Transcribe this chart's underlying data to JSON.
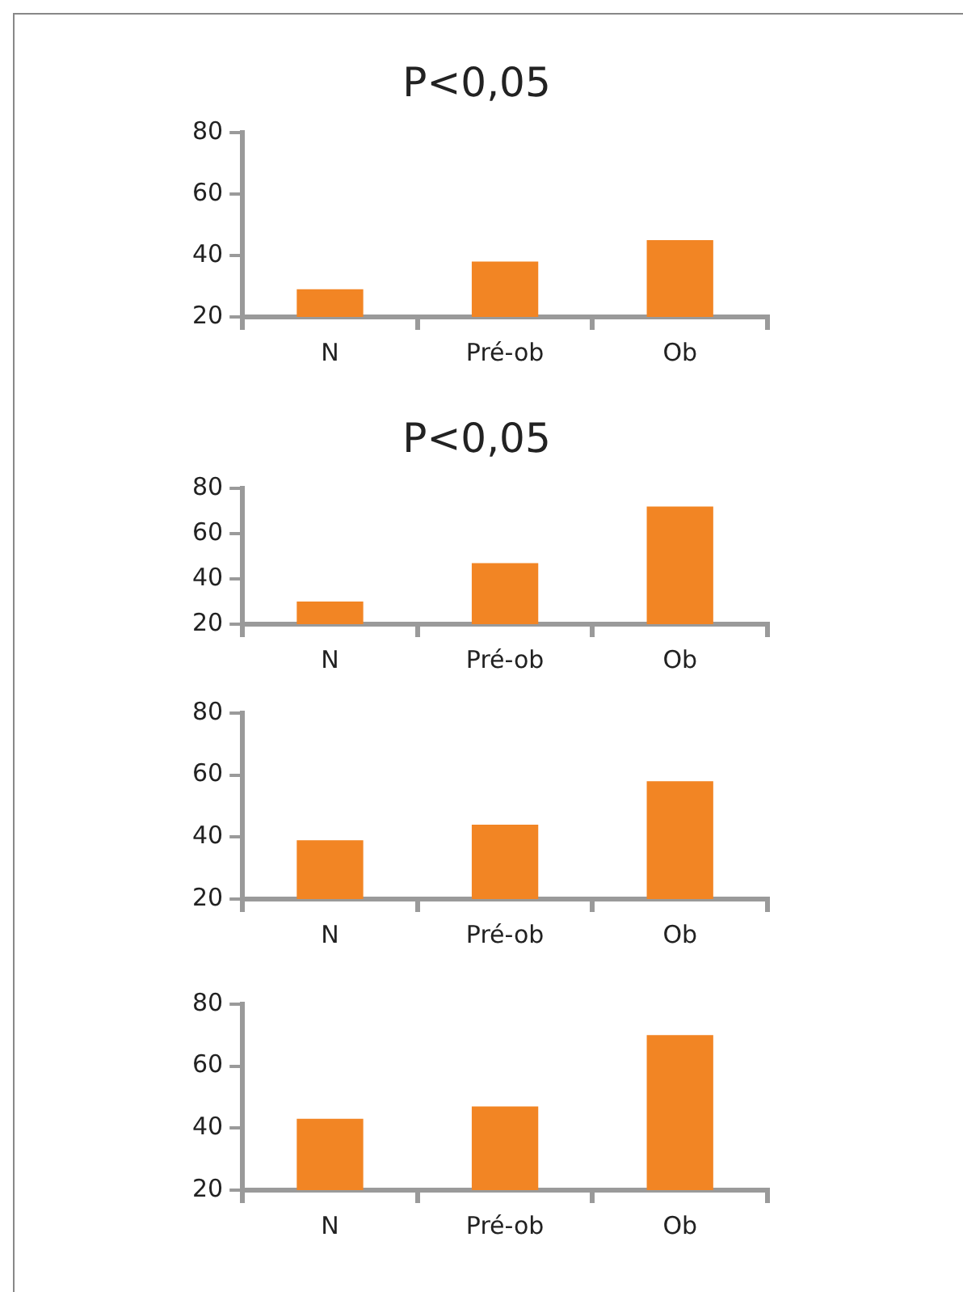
{
  "chart_data": [
    {
      "type": "bar",
      "title": "P<0,05",
      "categories": [
        "N",
        "Pré-ob",
        "Ob"
      ],
      "values": [
        29,
        38,
        45
      ],
      "color": "#f28524",
      "ylim": [
        20,
        80
      ],
      "yticks": [
        20,
        40,
        60,
        80
      ],
      "grid": false,
      "legend": false
    },
    {
      "type": "bar",
      "title": "P<0,05",
      "categories": [
        "N",
        "Pré-ob",
        "Ob"
      ],
      "values": [
        30,
        47,
        72
      ],
      "color": "#f28524",
      "ylim": [
        20,
        80
      ],
      "yticks": [
        20,
        40,
        60,
        80
      ],
      "grid": false,
      "legend": false
    },
    {
      "type": "bar",
      "categories": [
        "N",
        "Pré-ob",
        "Ob"
      ],
      "values": [
        39,
        44,
        58
      ],
      "color": "#f28524",
      "ylim": [
        20,
        80
      ],
      "yticks": [
        20,
        40,
        60,
        80
      ],
      "grid": false,
      "legend": false
    },
    {
      "type": "bar",
      "categories": [
        "N",
        "Pré-ob",
        "Ob"
      ],
      "values": [
        43,
        47,
        70
      ],
      "color": "#f28524",
      "ylim": [
        20,
        80
      ],
      "yticks": [
        20,
        40,
        60,
        80
      ],
      "grid": false,
      "legend": false
    }
  ]
}
